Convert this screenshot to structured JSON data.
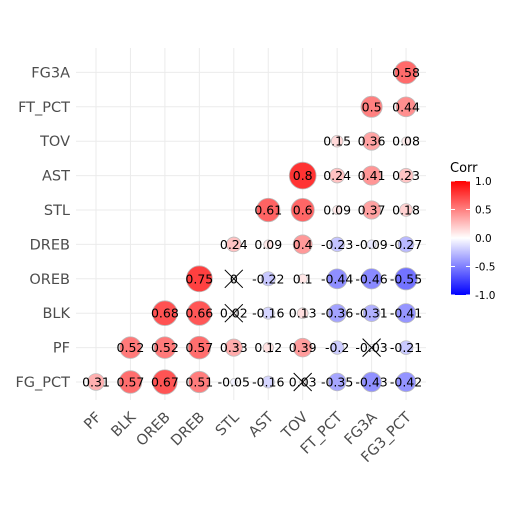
{
  "chart_data": {
    "type": "heatmap",
    "variables": [
      "FG_PCT",
      "PF",
      "BLK",
      "OREB",
      "DREB",
      "STL",
      "AST",
      "TOV",
      "FT_PCT",
      "FG3A",
      "FG3_PCT"
    ],
    "x_labels": [
      "PF",
      "BLK",
      "OREB",
      "DREB",
      "STL",
      "AST",
      "TOV",
      "FT_PCT",
      "FG3A",
      "FG3_PCT"
    ],
    "y_labels": [
      "FG_PCT",
      "PF",
      "BLK",
      "OREB",
      "DREB",
      "STL",
      "AST",
      "TOV",
      "FT_PCT",
      "FG3A"
    ],
    "cells": [
      {
        "x": "PF",
        "y": "FG_PCT",
        "value": 0.31,
        "label": "0.31",
        "crossed": false
      },
      {
        "x": "BLK",
        "y": "FG_PCT",
        "value": 0.57,
        "label": "0.57",
        "crossed": false
      },
      {
        "x": "OREB",
        "y": "FG_PCT",
        "value": 0.67,
        "label": "0.67",
        "crossed": false
      },
      {
        "x": "DREB",
        "y": "FG_PCT",
        "value": 0.51,
        "label": "0.51",
        "crossed": false
      },
      {
        "x": "STL",
        "y": "FG_PCT",
        "value": -0.05,
        "label": "-0.05",
        "crossed": false
      },
      {
        "x": "AST",
        "y": "FG_PCT",
        "value": -0.16,
        "label": "-0.16",
        "crossed": false
      },
      {
        "x": "TOV",
        "y": "FG_PCT",
        "value": 0.03,
        "label": "0.03",
        "crossed": true
      },
      {
        "x": "FT_PCT",
        "y": "FG_PCT",
        "value": -0.35,
        "label": "-0.35",
        "crossed": false
      },
      {
        "x": "FG3A",
        "y": "FG_PCT",
        "value": -0.43,
        "label": "-0.43",
        "crossed": false
      },
      {
        "x": "FG3_PCT",
        "y": "FG_PCT",
        "value": -0.42,
        "label": "-0.42",
        "crossed": false
      },
      {
        "x": "BLK",
        "y": "PF",
        "value": 0.52,
        "label": "0.52",
        "crossed": false
      },
      {
        "x": "OREB",
        "y": "PF",
        "value": 0.52,
        "label": "0.52",
        "crossed": false
      },
      {
        "x": "DREB",
        "y": "PF",
        "value": 0.57,
        "label": "0.57",
        "crossed": false
      },
      {
        "x": "STL",
        "y": "PF",
        "value": 0.33,
        "label": "0.33",
        "crossed": false
      },
      {
        "x": "AST",
        "y": "PF",
        "value": 0.12,
        "label": "0.12",
        "crossed": false
      },
      {
        "x": "TOV",
        "y": "PF",
        "value": 0.39,
        "label": "0.39",
        "crossed": false
      },
      {
        "x": "FT_PCT",
        "y": "PF",
        "value": -0.2,
        "label": "-0.2",
        "crossed": false
      },
      {
        "x": "FG3A",
        "y": "PF",
        "value": -0.03,
        "label": "-0.03",
        "crossed": true
      },
      {
        "x": "FG3_PCT",
        "y": "PF",
        "value": -0.21,
        "label": "-0.21",
        "crossed": false
      },
      {
        "x": "OREB",
        "y": "BLK",
        "value": 0.68,
        "label": "0.68",
        "crossed": false
      },
      {
        "x": "DREB",
        "y": "BLK",
        "value": 0.66,
        "label": "0.66",
        "crossed": false
      },
      {
        "x": "STL",
        "y": "BLK",
        "value": 0.02,
        "label": "0.02",
        "crossed": true
      },
      {
        "x": "AST",
        "y": "BLK",
        "value": -0.16,
        "label": "-0.16",
        "crossed": false
      },
      {
        "x": "TOV",
        "y": "BLK",
        "value": 0.13,
        "label": "0.13",
        "crossed": false
      },
      {
        "x": "FT_PCT",
        "y": "BLK",
        "value": -0.36,
        "label": "-0.36",
        "crossed": false
      },
      {
        "x": "FG3A",
        "y": "BLK",
        "value": -0.31,
        "label": "-0.31",
        "crossed": false
      },
      {
        "x": "FG3_PCT",
        "y": "BLK",
        "value": -0.41,
        "label": "-0.41",
        "crossed": false
      },
      {
        "x": "DREB",
        "y": "OREB",
        "value": 0.75,
        "label": "0.75",
        "crossed": false
      },
      {
        "x": "STL",
        "y": "OREB",
        "value": 0,
        "label": "0",
        "crossed": true
      },
      {
        "x": "AST",
        "y": "OREB",
        "value": -0.22,
        "label": "-0.22",
        "crossed": false
      },
      {
        "x": "TOV",
        "y": "OREB",
        "value": 0.1,
        "label": "0.1",
        "crossed": false
      },
      {
        "x": "FT_PCT",
        "y": "OREB",
        "value": -0.44,
        "label": "-0.44",
        "crossed": false
      },
      {
        "x": "FG3A",
        "y": "OREB",
        "value": -0.46,
        "label": "-0.46",
        "crossed": false
      },
      {
        "x": "FG3_PCT",
        "y": "OREB",
        "value": -0.55,
        "label": "-0.55",
        "crossed": false
      },
      {
        "x": "STL",
        "y": "DREB",
        "value": 0.24,
        "label": "0.24",
        "crossed": false
      },
      {
        "x": "AST",
        "y": "DREB",
        "value": 0.09,
        "label": "0.09",
        "crossed": false
      },
      {
        "x": "TOV",
        "y": "DREB",
        "value": 0.4,
        "label": "0.4",
        "crossed": false
      },
      {
        "x": "FT_PCT",
        "y": "DREB",
        "value": -0.23,
        "label": "-0.23",
        "crossed": false
      },
      {
        "x": "FG3A",
        "y": "DREB",
        "value": -0.09,
        "label": "-0.09",
        "crossed": false
      },
      {
        "x": "FG3_PCT",
        "y": "DREB",
        "value": -0.27,
        "label": "-0.27",
        "crossed": false
      },
      {
        "x": "AST",
        "y": "STL",
        "value": 0.61,
        "label": "0.61",
        "crossed": false
      },
      {
        "x": "TOV",
        "y": "STL",
        "value": 0.6,
        "label": "0.6",
        "crossed": false
      },
      {
        "x": "FT_PCT",
        "y": "STL",
        "value": 0.09,
        "label": "0.09",
        "crossed": false
      },
      {
        "x": "FG3A",
        "y": "STL",
        "value": 0.37,
        "label": "0.37",
        "crossed": false
      },
      {
        "x": "FG3_PCT",
        "y": "STL",
        "value": 0.18,
        "label": "0.18",
        "crossed": false
      },
      {
        "x": "TOV",
        "y": "AST",
        "value": 0.8,
        "label": "0.8",
        "crossed": false
      },
      {
        "x": "FT_PCT",
        "y": "AST",
        "value": 0.24,
        "label": "0.24",
        "crossed": false
      },
      {
        "x": "FG3A",
        "y": "AST",
        "value": 0.41,
        "label": "0.41",
        "crossed": false
      },
      {
        "x": "FG3_PCT",
        "y": "AST",
        "value": 0.23,
        "label": "0.23",
        "crossed": false
      },
      {
        "x": "FT_PCT",
        "y": "TOV",
        "value": 0.15,
        "label": "0.15",
        "crossed": false
      },
      {
        "x": "FG3A",
        "y": "TOV",
        "value": 0.36,
        "label": "0.36",
        "crossed": false
      },
      {
        "x": "FG3_PCT",
        "y": "TOV",
        "value": 0.08,
        "label": "0.08",
        "crossed": false
      },
      {
        "x": "FG3A",
        "y": "FT_PCT",
        "value": 0.5,
        "label": "0.5",
        "crossed": false
      },
      {
        "x": "FG3_PCT",
        "y": "FT_PCT",
        "value": 0.44,
        "label": "0.44",
        "crossed": false
      },
      {
        "x": "FG3_PCT",
        "y": "FG3A",
        "value": 0.58,
        "label": "0.58",
        "crossed": false
      }
    ],
    "legend": {
      "title": "Corr",
      "ticks": [
        {
          "value": 1.0,
          "label": "1.0"
        },
        {
          "value": 0.5,
          "label": "0.5"
        },
        {
          "value": 0.0,
          "label": "0.0"
        },
        {
          "value": -0.5,
          "label": "-0.5"
        },
        {
          "value": -1.0,
          "label": "-1.0"
        }
      ],
      "colors": {
        "high": "#ff0000",
        "mid": "#ffffff",
        "low": "#0000ff"
      },
      "placement": "right"
    },
    "value_range": [
      -1,
      1
    ],
    "grid": true,
    "colors": {
      "grid": "#ebebeb",
      "axis_text": "#4d4d4d",
      "circle_outline": "#bdbdbd",
      "cross": "#000000"
    }
  }
}
